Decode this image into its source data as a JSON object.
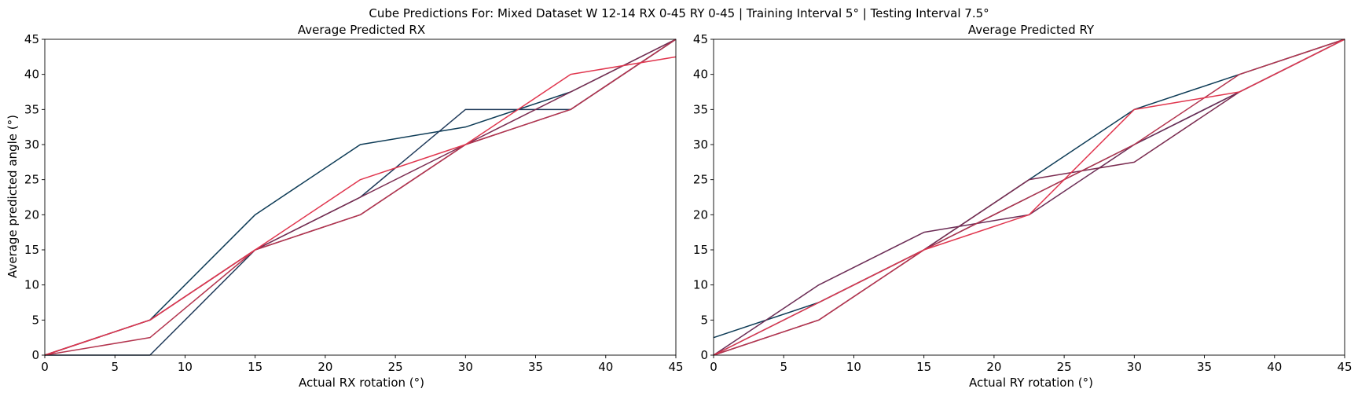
{
  "figure_title": "Cube Predictions For: Mixed Dataset W 12-14 RX 0-45 RY 0-45 | Training Interval 5° | Testing Interval 7.5°",
  "chart_data": [
    {
      "type": "line",
      "title": "Average Predicted RX",
      "xlabel": "Actual RX rotation (°)",
      "ylabel": "Average predicted angle (°)",
      "xlim": [
        0,
        45
      ],
      "ylim": [
        0,
        45
      ],
      "xticks": [
        "0",
        "5",
        "10",
        "15",
        "20",
        "25",
        "30",
        "35",
        "40",
        "45"
      ],
      "yticks": [
        "0",
        "5",
        "10",
        "15",
        "20",
        "25",
        "30",
        "35",
        "40",
        "45"
      ],
      "grid": false,
      "x": [
        0,
        7.5,
        15,
        22.5,
        30,
        37.5,
        45
      ],
      "series": [
        {
          "color": "#0d3b56",
          "values": [
            0,
            5,
            20,
            30,
            32.5,
            37.5,
            45
          ]
        },
        {
          "color": "#1f3a5a",
          "values": [
            0,
            0,
            15,
            22.5,
            35,
            35,
            45
          ]
        },
        {
          "color": "#6b2c55",
          "values": [
            0,
            5,
            15,
            20,
            30,
            35,
            45
          ]
        },
        {
          "color": "#7a2b50",
          "values": [
            0,
            5,
            15,
            22.5,
            30,
            37.5,
            45
          ]
        },
        {
          "color": "#b3344e",
          "values": [
            0,
            2.5,
            15,
            20,
            30,
            35,
            45
          ]
        },
        {
          "color": "#e0364e",
          "values": [
            0,
            5,
            15,
            25,
            30,
            40,
            42.5
          ]
        }
      ]
    },
    {
      "type": "line",
      "title": "Average Predicted RY",
      "xlabel": "Actual RY rotation (°)",
      "ylabel": "",
      "xlim": [
        0,
        45
      ],
      "ylim": [
        0,
        45
      ],
      "xticks": [
        "0",
        "5",
        "10",
        "15",
        "20",
        "25",
        "30",
        "35",
        "40",
        "45"
      ],
      "yticks": [
        "0",
        "5",
        "10",
        "15",
        "20",
        "25",
        "30",
        "35",
        "40",
        "45"
      ],
      "grid": false,
      "x": [
        0,
        7.5,
        15,
        22.5,
        30,
        37.5,
        45
      ],
      "series": [
        {
          "color": "#0d3b56",
          "values": [
            2.5,
            7.5,
            15,
            25,
            35,
            40,
            45
          ]
        },
        {
          "color": "#1f3a5a",
          "values": [
            0,
            7.5,
            15,
            22.5,
            30,
            37.5,
            45
          ]
        },
        {
          "color": "#6b2c55",
          "values": [
            0,
            10,
            17.5,
            20,
            30,
            37.5,
            45
          ]
        },
        {
          "color": "#7a2b50",
          "values": [
            0,
            5,
            15,
            25,
            27.5,
            37.5,
            45
          ]
        },
        {
          "color": "#b3344e",
          "values": [
            0,
            5,
            15,
            22.5,
            30,
            40,
            45
          ]
        },
        {
          "color": "#e0364e",
          "values": [
            0,
            7.5,
            15,
            20,
            35,
            37.5,
            45
          ]
        }
      ]
    }
  ]
}
